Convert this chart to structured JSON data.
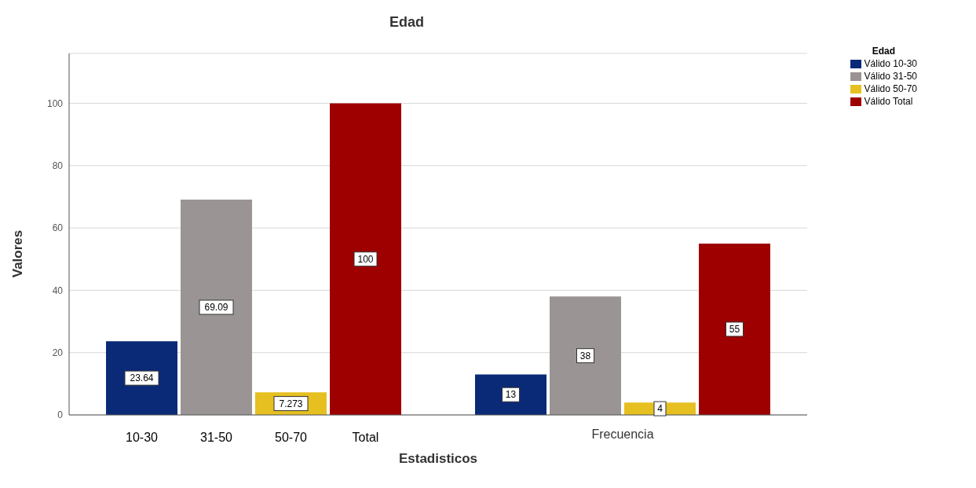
{
  "chart_data": {
    "type": "bar",
    "title": "Edad",
    "xlabel": "Estadisticos",
    "ylabel": "Valores",
    "legend_title": "Edad",
    "categories": [
      null,
      "Frecuencia"
    ],
    "series": [
      {
        "name": "Válido 10-30",
        "color": "#0a2a78",
        "values": [
          23.64,
          13
        ]
      },
      {
        "name": "Válido 31-50",
        "color": "#9a9594",
        "values": [
          69.09,
          38
        ]
      },
      {
        "name": "Válido 50-70",
        "color": "#e6c020",
        "values": [
          7.273,
          4
        ]
      },
      {
        "name": "Válido Total",
        "color": "#9e0000",
        "values": [
          100,
          55
        ]
      }
    ],
    "ylim": [
      0,
      116
    ],
    "yticks": [
      0,
      20,
      40,
      60,
      80,
      100
    ],
    "grid": "y",
    "legend": "top right",
    "data_labels": true,
    "annotations": [
      "10-30",
      "31-50",
      "50-70",
      "Total"
    ]
  }
}
